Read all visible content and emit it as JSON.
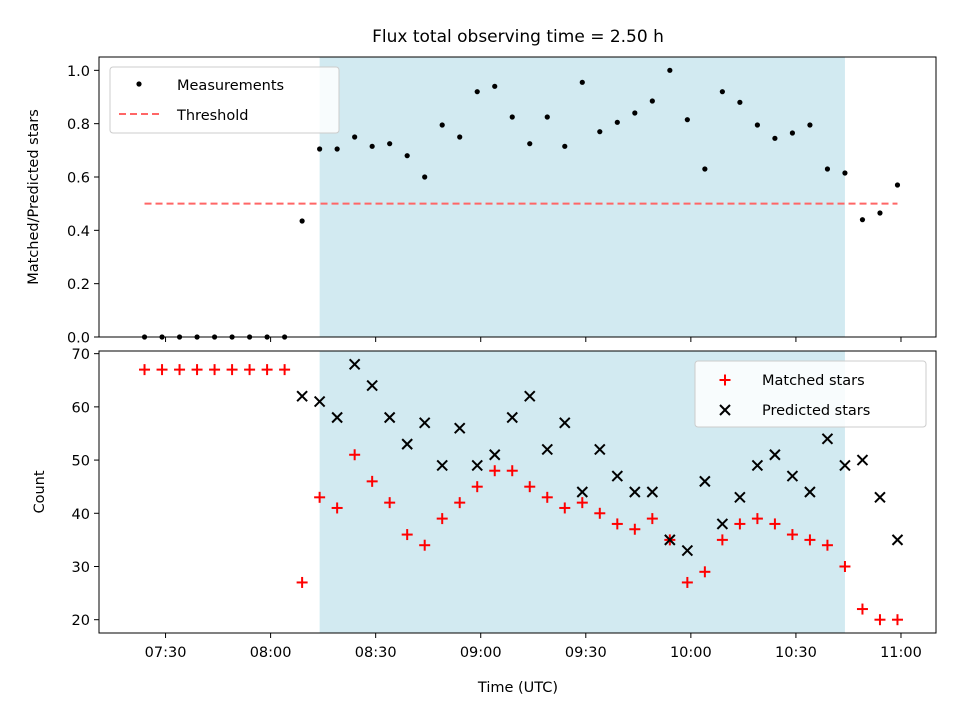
{
  "figure": {
    "title": "Flux total observing time = 2.50 h",
    "xlabel": "Time (UTC)",
    "xtick_labels": [
      "07:30",
      "08:00",
      "08:30",
      "09:00",
      "09:30",
      "10:00",
      "10:30",
      "11:00"
    ]
  },
  "colors": {
    "shade": "#add8e6",
    "measurements": "#000000",
    "threshold": "#ff6666",
    "matched": "#ff0000",
    "predicted": "#000000"
  },
  "chart_data": [
    {
      "type": "scatter",
      "ylabel": "Matched/Predicted stars",
      "xlim": [
        "07:11",
        "11:10"
      ],
      "ylim": [
        0,
        1.05
      ],
      "yticks": [
        0.0,
        0.2,
        0.4,
        0.6,
        0.8,
        1.0
      ],
      "ytick_labels": [
        "0.0",
        "0.2",
        "0.4",
        "0.6",
        "0.8",
        "1.0"
      ],
      "x": [
        "07:24",
        "07:29",
        "07:34",
        "07:39",
        "07:44",
        "07:49",
        "07:54",
        "07:59",
        "08:04",
        "08:09",
        "08:14",
        "08:19",
        "08:24",
        "08:29",
        "08:34",
        "08:39",
        "08:44",
        "08:49",
        "08:54",
        "08:59",
        "09:04",
        "09:09",
        "09:14",
        "09:19",
        "09:24",
        "09:29",
        "09:34",
        "09:39",
        "09:44",
        "09:49",
        "09:54",
        "09:59",
        "10:04",
        "10:09",
        "10:14",
        "10:19",
        "10:24",
        "10:29",
        "10:34",
        "10:39",
        "10:44",
        "10:49",
        "10:54",
        "10:59"
      ],
      "series": [
        {
          "name": "Measurements",
          "values": [
            0,
            0,
            0,
            0,
            0,
            0,
            0,
            0,
            0,
            0.435,
            0.705,
            0.705,
            0.75,
            0.715,
            0.725,
            0.68,
            0.6,
            0.795,
            0.75,
            0.92,
            0.94,
            0.825,
            0.725,
            0.825,
            0.715,
            0.955,
            0.77,
            0.805,
            0.84,
            0.885,
            1.0,
            0.815,
            0.63,
            0.92,
            0.88,
            0.795,
            0.745,
            0.765,
            0.795,
            0.63,
            0.615,
            0.44,
            0.465,
            0.57
          ]
        }
      ],
      "threshold": {
        "name": "Threshold",
        "value": 0.5,
        "x_range": [
          "07:24",
          "10:59"
        ]
      },
      "shaded_span": [
        "08:14",
        "10:44"
      ],
      "legend": "upper left"
    },
    {
      "type": "scatter",
      "ylabel": "Count",
      "xlim": [
        "07:11",
        "11:10"
      ],
      "ylim": [
        17.5,
        70.5
      ],
      "yticks": [
        20,
        30,
        40,
        50,
        60,
        70
      ],
      "ytick_labels": [
        "20",
        "30",
        "40",
        "50",
        "60",
        "70"
      ],
      "x": [
        "07:24",
        "07:29",
        "07:34",
        "07:39",
        "07:44",
        "07:49",
        "07:54",
        "07:59",
        "08:04",
        "08:09",
        "08:14",
        "08:19",
        "08:24",
        "08:29",
        "08:34",
        "08:39",
        "08:44",
        "08:49",
        "08:54",
        "08:59",
        "09:04",
        "09:09",
        "09:14",
        "09:19",
        "09:24",
        "09:29",
        "09:34",
        "09:39",
        "09:44",
        "09:49",
        "09:54",
        "09:59",
        "10:04",
        "10:09",
        "10:14",
        "10:19",
        "10:24",
        "10:29",
        "10:34",
        "10:39",
        "10:44",
        "10:49",
        "10:54",
        "10:59"
      ],
      "series": [
        {
          "name": "Matched stars",
          "values": [
            67,
            67,
            67,
            67,
            67,
            67,
            67,
            67,
            67,
            27,
            43,
            41,
            51,
            46,
            42,
            36,
            34,
            39,
            42,
            45,
            48,
            48,
            45,
            43,
            41,
            42,
            40,
            38,
            37,
            39,
            35,
            27,
            29,
            35,
            38,
            39,
            38,
            36,
            35,
            34,
            30,
            22,
            20,
            20
          ]
        },
        {
          "name": "Predicted stars",
          "values": [
            null,
            null,
            null,
            null,
            null,
            null,
            null,
            null,
            null,
            62,
            61,
            58,
            68,
            64,
            58,
            53,
            57,
            49,
            56,
            49,
            51,
            58,
            62,
            52,
            57,
            44,
            52,
            47,
            44,
            44,
            35,
            33,
            46,
            38,
            43,
            49,
            51,
            47,
            44,
            54,
            49,
            50,
            43,
            35
          ]
        }
      ],
      "shaded_span": [
        "08:14",
        "10:44"
      ],
      "legend": "upper right"
    }
  ]
}
